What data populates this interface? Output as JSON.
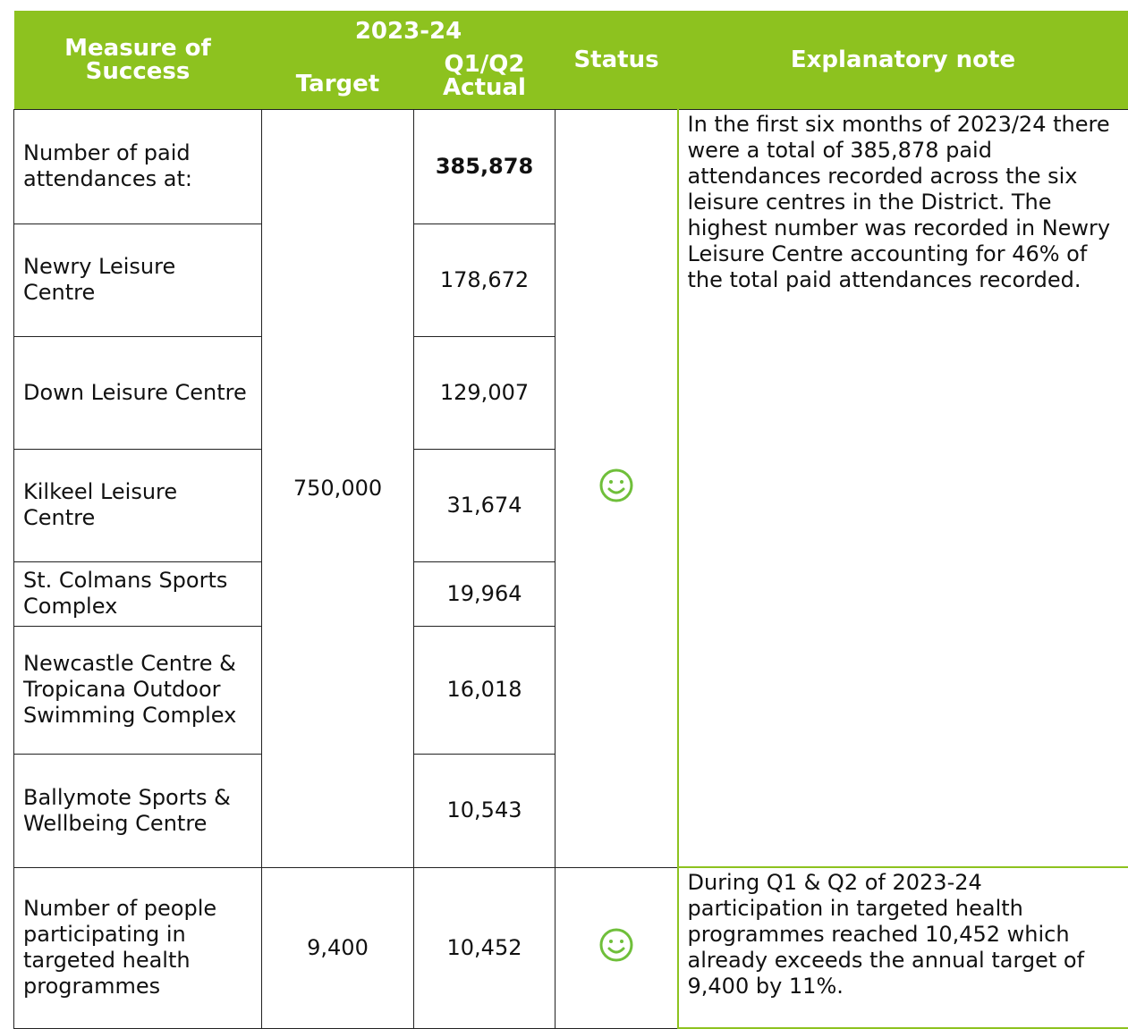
{
  "header": {
    "measure": "Measure of Success",
    "year": "2023-24",
    "target": "Target",
    "actual": "Q1/Q2 Actual",
    "status": "Status",
    "note": "Explanatory note"
  },
  "groups": [
    {
      "target": "750,000",
      "note": "In the first six months of 2023/24 there were a total of 385,878 paid attendances recorded across the six leisure centres in the District. The highest number was recorded in Newry Leisure Centre accounting for 46% of the total paid attendances recorded.",
      "rows": [
        {
          "measure": "Number of paid attendances at:",
          "actual": "385,878"
        },
        {
          "measure": "Newry Leisure Centre",
          "actual": "178,672"
        },
        {
          "measure": "Down Leisure Centre",
          "actual": "129,007"
        },
        {
          "measure": "Kilkeel Leisure Centre",
          "actual": "31,674"
        },
        {
          "measure": "St. Colmans Sports Complex",
          "actual": "19,964"
        },
        {
          "measure": "Newcastle Centre & Tropicana Outdoor Swimming Complex",
          "actual": "16,018"
        },
        {
          "measure": "Ballymote Sports & Wellbeing Centre",
          "actual": "10,543"
        }
      ]
    },
    {
      "target": "9,400",
      "note": "During Q1 & Q2 of 2023-24 participation in targeted health programmes reached 10,452 which already exceeds the annual target of 9,400 by 11%.",
      "rows": [
        {
          "measure": "Number of people participating in targeted health programmes",
          "actual": "10,452"
        }
      ]
    }
  ]
}
